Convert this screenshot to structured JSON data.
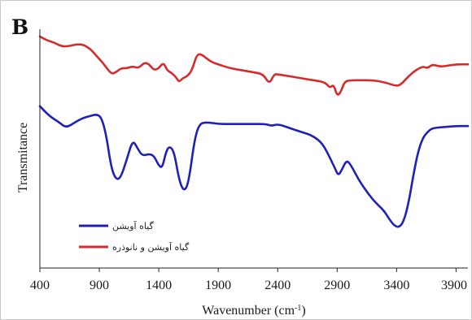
{
  "panel_label": "B",
  "colors": {
    "series_1": "#1f20b8",
    "series_2": "#d42b2b",
    "axis": "#222222",
    "frame": "#c9c9c9"
  },
  "chart_data": {
    "type": "line",
    "title": "",
    "xlabel": "Wavenumber",
    "xlabel_unit_base": "(cm",
    "xlabel_unit_sup": "-1",
    "xlabel_unit_end": ")",
    "ylabel": "Transmitance",
    "xlim": [
      400,
      4000
    ],
    "xticks": [
      "400",
      "900",
      "1400",
      "1900",
      "2400",
      "2900",
      "3400",
      "3900"
    ],
    "ylim": [
      0,
      100
    ],
    "grid": false,
    "legend_position": "bottom-left",
    "series": [
      {
        "name": "گیاه آویشن",
        "color": "#1f20b8",
        "points": [
          [
            400,
            63
          ],
          [
            480,
            58
          ],
          [
            560,
            55
          ],
          [
            620,
            52
          ],
          [
            700,
            55
          ],
          [
            760,
            57
          ],
          [
            820,
            58
          ],
          [
            880,
            59
          ],
          [
            920,
            57
          ],
          [
            960,
            48
          ],
          [
            1000,
            32
          ],
          [
            1040,
            26
          ],
          [
            1080,
            27
          ],
          [
            1130,
            36
          ],
          [
            1180,
            46
          ],
          [
            1220,
            42
          ],
          [
            1260,
            38
          ],
          [
            1320,
            39
          ],
          [
            1360,
            38
          ],
          [
            1400,
            33
          ],
          [
            1430,
            32
          ],
          [
            1460,
            40
          ],
          [
            1490,
            43
          ],
          [
            1530,
            40
          ],
          [
            1570,
            26
          ],
          [
            1610,
            20
          ],
          [
            1650,
            24
          ],
          [
            1700,
            46
          ],
          [
            1740,
            54
          ],
          [
            1800,
            55
          ],
          [
            1900,
            54
          ],
          [
            2000,
            54
          ],
          [
            2100,
            54
          ],
          [
            2200,
            54
          ],
          [
            2300,
            54
          ],
          [
            2350,
            53
          ],
          [
            2400,
            54
          ],
          [
            2500,
            52
          ],
          [
            2600,
            50
          ],
          [
            2700,
            48
          ],
          [
            2780,
            44
          ],
          [
            2840,
            37
          ],
          [
            2880,
            32
          ],
          [
            2910,
            28
          ],
          [
            2940,
            31
          ],
          [
            2980,
            36
          ],
          [
            3020,
            33
          ],
          [
            3080,
            26
          ],
          [
            3150,
            20
          ],
          [
            3200,
            16
          ],
          [
            3250,
            13
          ],
          [
            3300,
            10
          ],
          [
            3340,
            6
          ],
          [
            3380,
            3
          ],
          [
            3420,
            2
          ],
          [
            3460,
            5
          ],
          [
            3500,
            14
          ],
          [
            3540,
            28
          ],
          [
            3580,
            40
          ],
          [
            3620,
            47
          ],
          [
            3660,
            50
          ],
          [
            3700,
            52
          ],
          [
            3800,
            52.5
          ],
          [
            3900,
            53
          ],
          [
            4000,
            53
          ]
        ]
      },
      {
        "name": "گیاه آویشن و نانوذره",
        "color": "#d42b2b",
        "points": [
          [
            400,
            98
          ],
          [
            460,
            96
          ],
          [
            520,
            95
          ],
          [
            580,
            93
          ],
          [
            640,
            93
          ],
          [
            700,
            94
          ],
          [
            760,
            94
          ],
          [
            820,
            92
          ],
          [
            880,
            88
          ],
          [
            940,
            84
          ],
          [
            1000,
            79
          ],
          [
            1040,
            80
          ],
          [
            1080,
            82
          ],
          [
            1130,
            82
          ],
          [
            1180,
            83
          ],
          [
            1230,
            82
          ],
          [
            1280,
            85
          ],
          [
            1320,
            84
          ],
          [
            1360,
            81
          ],
          [
            1400,
            82
          ],
          [
            1440,
            85
          ],
          [
            1470,
            81
          ],
          [
            1500,
            80
          ],
          [
            1540,
            78
          ],
          [
            1570,
            75
          ],
          [
            1600,
            77
          ],
          [
            1640,
            78
          ],
          [
            1680,
            81
          ],
          [
            1720,
            89
          ],
          [
            1760,
            89
          ],
          [
            1800,
            87
          ],
          [
            1850,
            85
          ],
          [
            1900,
            84
          ],
          [
            2000,
            82
          ],
          [
            2100,
            81
          ],
          [
            2200,
            80
          ],
          [
            2280,
            79
          ],
          [
            2330,
            74
          ],
          [
            2370,
            79
          ],
          [
            2400,
            79
          ],
          [
            2500,
            78
          ],
          [
            2600,
            77
          ],
          [
            2700,
            76
          ],
          [
            2800,
            75
          ],
          [
            2840,
            72
          ],
          [
            2870,
            74
          ],
          [
            2900,
            68
          ],
          [
            2930,
            70
          ],
          [
            2960,
            75
          ],
          [
            3000,
            76
          ],
          [
            3100,
            76
          ],
          [
            3200,
            76
          ],
          [
            3300,
            75
          ],
          [
            3400,
            73
          ],
          [
            3440,
            74
          ],
          [
            3500,
            78
          ],
          [
            3560,
            81
          ],
          [
            3620,
            83
          ],
          [
            3660,
            82
          ],
          [
            3700,
            84
          ],
          [
            3750,
            83
          ],
          [
            3800,
            83
          ],
          [
            3900,
            84
          ],
          [
            4000,
            84
          ]
        ]
      }
    ]
  }
}
